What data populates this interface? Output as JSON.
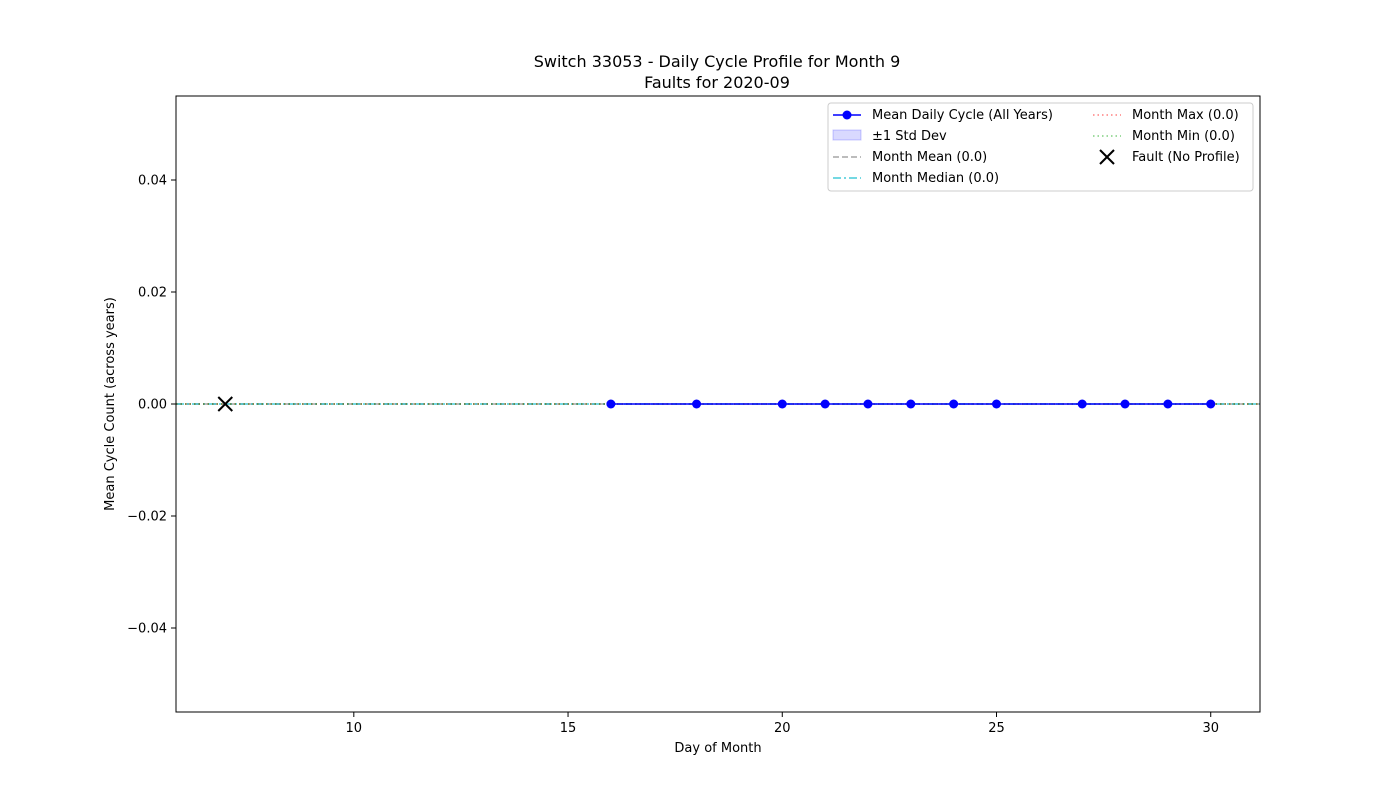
{
  "chart_data": {
    "type": "line",
    "title": "Switch 33053 - Daily Cycle Profile for Month 9",
    "subtitle": "Faults for 2020-09",
    "xlabel": "Day of Month",
    "ylabel": "Mean Cycle Count (across years)",
    "xlim": [
      5.85,
      31.15
    ],
    "ylim": [
      -0.055,
      0.055
    ],
    "xticks": [
      10,
      15,
      20,
      25,
      30
    ],
    "xtick_labels": [
      "10",
      "15",
      "20",
      "25",
      "30"
    ],
    "yticks": [
      -0.04,
      -0.02,
      0.0,
      0.02,
      0.04
    ],
    "ytick_labels": [
      "−0.04",
      "−0.02",
      "0.00",
      "0.02",
      "0.04"
    ],
    "grid": false,
    "legend_position": "upper-right",
    "series": [
      {
        "name": "Mean Daily Cycle (All Years)",
        "color": "#0000ff",
        "style": "solid-with-markers",
        "x": [
          16,
          18,
          20,
          21,
          22,
          23,
          24,
          25,
          27,
          28,
          29,
          30
        ],
        "y": [
          0,
          0,
          0,
          0,
          0,
          0,
          0,
          0,
          0,
          0,
          0,
          0
        ]
      }
    ],
    "band": {
      "name": "±1 Std Dev",
      "color": "#0000ff",
      "lower": 0,
      "upper": 0
    },
    "reference_lines": [
      {
        "name": "Month Mean (0.0)",
        "value": 0.0,
        "color": "#808080",
        "style": "dashed"
      },
      {
        "name": "Month Median (0.0)",
        "value": 0.0,
        "color": "#17becf",
        "style": "dashdot"
      },
      {
        "name": "Month Max (0.0)",
        "value": 0.0,
        "color": "#ff0000",
        "style": "dotted"
      },
      {
        "name": "Month Min (0.0)",
        "value": 0.0,
        "color": "#00a000",
        "style": "dotted"
      }
    ],
    "faults": [
      {
        "name": "Fault (No Profile)",
        "x": 7,
        "y": 0,
        "color": "#000000",
        "marker": "x"
      }
    ],
    "legend": {
      "col1": [
        "Mean Daily Cycle (All Years)",
        "±1 Std Dev",
        "Month Mean (0.0)",
        "Month Median (0.0)"
      ],
      "col2": [
        "Month Max (0.0)",
        "Month Min (0.0)",
        "Fault (No Profile)"
      ]
    }
  }
}
